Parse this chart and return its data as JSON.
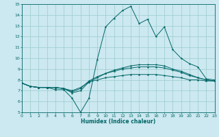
{
  "title": "",
  "xlabel": "Humidex (Indice chaleur)",
  "bg_color": "#cce8f0",
  "grid_color": "#99cccc",
  "line_color": "#006666",
  "xlim": [
    0,
    23
  ],
  "ylim": [
    5,
    15
  ],
  "xticks": [
    0,
    1,
    2,
    3,
    4,
    5,
    6,
    7,
    8,
    9,
    10,
    11,
    12,
    13,
    14,
    15,
    16,
    17,
    18,
    19,
    20,
    21,
    22,
    23
  ],
  "yticks": [
    5,
    6,
    7,
    8,
    9,
    10,
    11,
    12,
    13,
    14,
    15
  ],
  "lines": [
    {
      "x": [
        0,
        1,
        2,
        3,
        4,
        5,
        6,
        7,
        8,
        9,
        10,
        11,
        12,
        13,
        14,
        15,
        16,
        17,
        18,
        19,
        20,
        21,
        22,
        23
      ],
      "y": [
        7.7,
        7.4,
        7.3,
        7.3,
        7.1,
        7.1,
        6.3,
        5.0,
        6.3,
        9.9,
        12.9,
        13.7,
        14.4,
        14.8,
        13.2,
        13.6,
        12.0,
        12.9,
        10.8,
        10.0,
        9.5,
        9.2,
        8.1,
        8.0
      ]
    },
    {
      "x": [
        0,
        1,
        2,
        3,
        4,
        5,
        6,
        7,
        8,
        9,
        10,
        11,
        12,
        13,
        14,
        15,
        16,
        17,
        18,
        19,
        20,
        21,
        22,
        23
      ],
      "y": [
        7.7,
        7.4,
        7.3,
        7.3,
        7.3,
        7.2,
        6.8,
        7.0,
        7.8,
        8.2,
        8.6,
        8.9,
        9.1,
        9.3,
        9.4,
        9.4,
        9.4,
        9.3,
        9.0,
        8.8,
        8.5,
        8.2,
        8.0,
        7.9
      ]
    },
    {
      "x": [
        0,
        1,
        2,
        3,
        4,
        5,
        6,
        7,
        8,
        9,
        10,
        11,
        12,
        13,
        14,
        15,
        16,
        17,
        18,
        19,
        20,
        21,
        22,
        23
      ],
      "y": [
        7.7,
        7.4,
        7.3,
        7.3,
        7.3,
        7.2,
        6.9,
        7.2,
        7.9,
        8.3,
        8.6,
        8.8,
        9.0,
        9.1,
        9.2,
        9.2,
        9.2,
        9.1,
        8.9,
        8.7,
        8.4,
        8.2,
        8.0,
        7.9
      ]
    },
    {
      "x": [
        0,
        1,
        2,
        3,
        4,
        5,
        6,
        7,
        8,
        9,
        10,
        11,
        12,
        13,
        14,
        15,
        16,
        17,
        18,
        19,
        20,
        21,
        22,
        23
      ],
      "y": [
        7.7,
        7.4,
        7.3,
        7.3,
        7.3,
        7.2,
        7.0,
        7.3,
        7.8,
        8.0,
        8.2,
        8.3,
        8.4,
        8.5,
        8.5,
        8.5,
        8.5,
        8.4,
        8.3,
        8.2,
        8.0,
        8.0,
        7.9,
        7.9
      ]
    }
  ]
}
